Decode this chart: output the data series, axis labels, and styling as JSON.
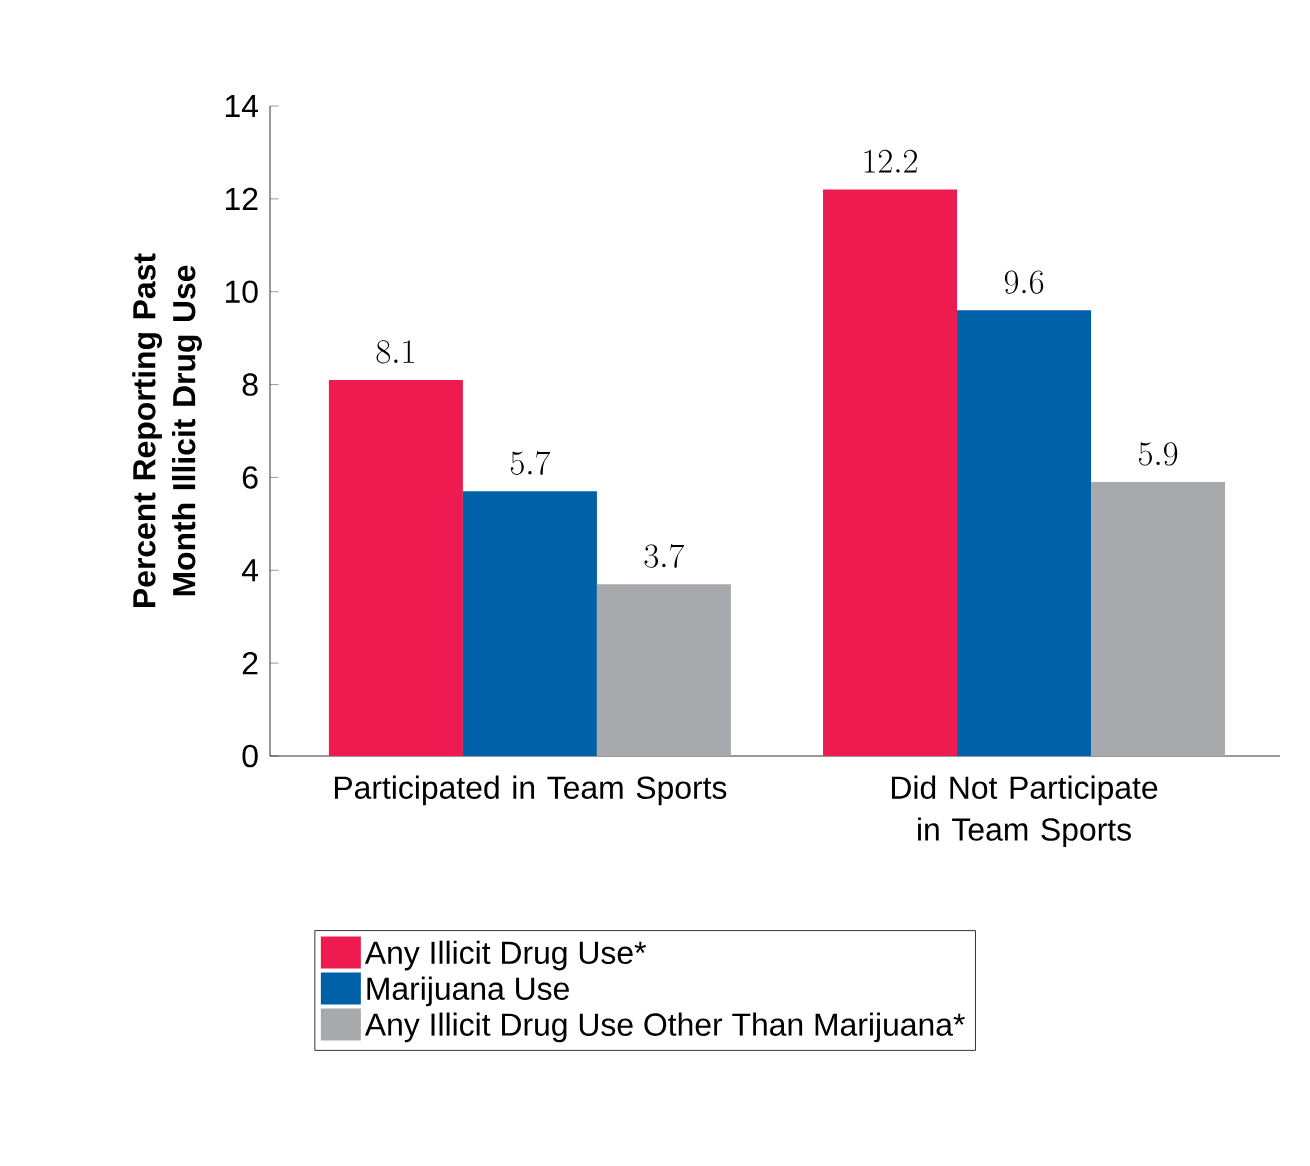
{
  "chart_data": {
    "type": "bar",
    "ylabel": "Percent Reporting Past Month Illicit Drug Use",
    "categories": [
      "Participated in Team Sports",
      "Did Not Participate in Team Sports"
    ],
    "series": [
      {
        "name": "Any Illicit Drug Use*",
        "color": "#ed1b4f",
        "values": [
          8.1,
          12.2
        ]
      },
      {
        "name": "Marijuana Use",
        "color": "#0061a9",
        "values": [
          5.7,
          9.6
        ]
      },
      {
        "name": "Any Illicit Drug Use Other Than Marijuana*",
        "color": "#a7a9ac",
        "values": [
          3.7,
          5.9
        ]
      }
    ],
    "ylim": [
      0,
      14
    ],
    "yticks": [
      0,
      2,
      4,
      6,
      8,
      10,
      12,
      14
    ],
    "data_labels": true,
    "grid": false,
    "legend": "bottom"
  }
}
